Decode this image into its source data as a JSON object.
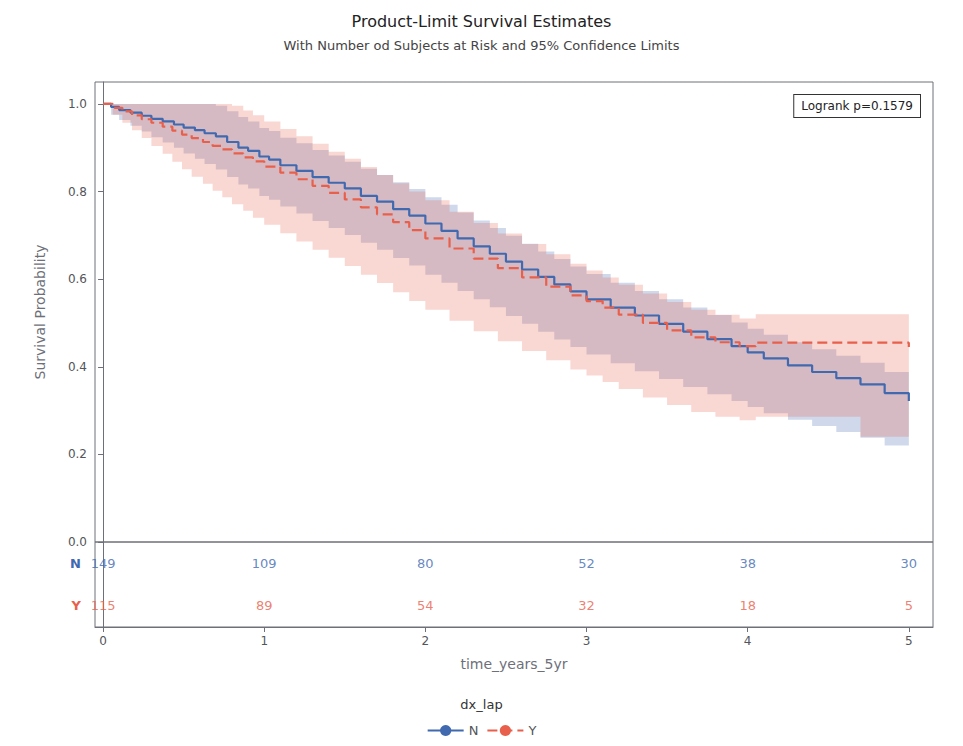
{
  "chart_data": {
    "type": "step",
    "title": "Product-Limit Survival Estimates",
    "subtitle": "With Number od Subjects at Risk and 95% Confidence Limits",
    "xlabel": "time_years_5yr",
    "ylabel": "Survival Probability",
    "annotation": "Logrank p=0.1579",
    "xlim": [
      -0.05,
      5.15
    ],
    "ylim": [
      0.0,
      1.05
    ],
    "xticks": [
      0,
      1,
      2,
      3,
      4,
      5
    ],
    "yticks": [
      {
        "value": 0.0,
        "label": "0.0"
      },
      0.2,
      0.4,
      0.6,
      0.8,
      {
        "value": 1.0,
        "label": "1.0"
      }
    ],
    "grid": false,
    "legend": "bottom",
    "legend_title": "dx_lap",
    "series": [
      {
        "name": "N",
        "color": "#4169B0",
        "line_style": "solid",
        "x": [
          0.0,
          0.05,
          0.1,
          0.17,
          0.24,
          0.3,
          0.37,
          0.44,
          0.5,
          0.57,
          0.63,
          0.7,
          0.77,
          0.84,
          0.9,
          0.97,
          1.03,
          1.1,
          1.2,
          1.3,
          1.4,
          1.5,
          1.6,
          1.7,
          1.8,
          1.9,
          2.0,
          2.1,
          2.2,
          2.3,
          2.4,
          2.5,
          2.6,
          2.7,
          2.8,
          2.9,
          3.0,
          3.15,
          3.3,
          3.45,
          3.6,
          3.75,
          3.9,
          4.0,
          4.1,
          4.25,
          4.4,
          4.55,
          4.7,
          4.85,
          5.0
        ],
        "values": [
          1.0,
          0.993,
          0.986,
          0.98,
          0.973,
          0.966,
          0.96,
          0.953,
          0.946,
          0.94,
          0.933,
          0.926,
          0.913,
          0.9,
          0.893,
          0.88,
          0.873,
          0.86,
          0.847,
          0.833,
          0.82,
          0.807,
          0.79,
          0.777,
          0.76,
          0.745,
          0.727,
          0.71,
          0.693,
          0.675,
          0.658,
          0.64,
          0.622,
          0.605,
          0.588,
          0.572,
          0.554,
          0.535,
          0.517,
          0.498,
          0.48,
          0.463,
          0.447,
          0.433,
          0.419,
          0.403,
          0.388,
          0.374,
          0.36,
          0.34,
          0.322
        ],
        "lower": [
          1.0,
          0.975,
          0.963,
          0.95,
          0.937,
          0.924,
          0.912,
          0.9,
          0.887,
          0.875,
          0.863,
          0.85,
          0.833,
          0.816,
          0.807,
          0.79,
          0.781,
          0.766,
          0.75,
          0.733,
          0.717,
          0.701,
          0.683,
          0.667,
          0.648,
          0.631,
          0.61,
          0.592,
          0.573,
          0.554,
          0.536,
          0.516,
          0.498,
          0.48,
          0.462,
          0.445,
          0.428,
          0.408,
          0.39,
          0.372,
          0.354,
          0.337,
          0.322,
          0.308,
          0.294,
          0.279,
          0.265,
          0.251,
          0.238,
          0.22,
          0.218
        ],
        "upper": [
          1.0,
          1.0,
          1.0,
          1.0,
          1.0,
          1.0,
          1.0,
          1.0,
          1.0,
          1.0,
          1.0,
          0.996,
          0.983,
          0.97,
          0.96,
          0.945,
          0.938,
          0.923,
          0.91,
          0.895,
          0.882,
          0.868,
          0.852,
          0.838,
          0.821,
          0.806,
          0.787,
          0.77,
          0.752,
          0.734,
          0.717,
          0.699,
          0.681,
          0.663,
          0.646,
          0.629,
          0.612,
          0.592,
          0.573,
          0.554,
          0.535,
          0.518,
          0.501,
          0.487,
          0.473,
          0.456,
          0.44,
          0.425,
          0.409,
          0.388,
          0.388
        ]
      },
      {
        "name": "Y",
        "color": "#E8604C",
        "line_style": "dashed",
        "x": [
          0.0,
          0.06,
          0.12,
          0.18,
          0.24,
          0.3,
          0.37,
          0.43,
          0.49,
          0.55,
          0.62,
          0.68,
          0.74,
          0.8,
          0.87,
          0.93,
          1.0,
          1.1,
          1.2,
          1.3,
          1.4,
          1.5,
          1.6,
          1.7,
          1.8,
          1.9,
          2.0,
          2.15,
          2.3,
          2.45,
          2.6,
          2.75,
          2.9,
          3.0,
          3.1,
          3.2,
          3.35,
          3.5,
          3.65,
          3.8,
          3.95,
          4.05,
          4.2,
          4.45,
          4.7,
          4.9,
          5.0
        ],
        "values": [
          1.0,
          0.991,
          0.983,
          0.974,
          0.965,
          0.957,
          0.948,
          0.939,
          0.93,
          0.922,
          0.913,
          0.904,
          0.896,
          0.887,
          0.878,
          0.869,
          0.857,
          0.843,
          0.828,
          0.813,
          0.797,
          0.782,
          0.764,
          0.748,
          0.73,
          0.712,
          0.693,
          0.67,
          0.647,
          0.625,
          0.604,
          0.583,
          0.563,
          0.55,
          0.535,
          0.519,
          0.5,
          0.483,
          0.467,
          0.456,
          0.447,
          0.455,
          0.455,
          0.455,
          0.455,
          0.455,
          0.445
        ],
        "lower": [
          1.0,
          0.975,
          0.957,
          0.94,
          0.922,
          0.904,
          0.886,
          0.868,
          0.851,
          0.834,
          0.818,
          0.802,
          0.787,
          0.771,
          0.756,
          0.74,
          0.724,
          0.705,
          0.686,
          0.667,
          0.649,
          0.63,
          0.61,
          0.591,
          0.57,
          0.55,
          0.53,
          0.505,
          0.481,
          0.458,
          0.436,
          0.415,
          0.394,
          0.38,
          0.365,
          0.349,
          0.33,
          0.313,
          0.297,
          0.286,
          0.278,
          0.286,
          0.286,
          0.286,
          0.24,
          0.24,
          0.235
        ],
        "upper": [
          1.0,
          1.0,
          1.0,
          1.0,
          1.0,
          1.0,
          1.0,
          1.0,
          1.0,
          1.0,
          1.0,
          1.0,
          1.0,
          0.996,
          0.985,
          0.974,
          0.96,
          0.943,
          0.926,
          0.909,
          0.891,
          0.875,
          0.856,
          0.838,
          0.819,
          0.8,
          0.78,
          0.754,
          0.728,
          0.704,
          0.68,
          0.657,
          0.635,
          0.62,
          0.604,
          0.587,
          0.567,
          0.548,
          0.53,
          0.519,
          0.51,
          0.52,
          0.52,
          0.52,
          0.52,
          0.52,
          0.52
        ]
      }
    ],
    "risk_table": {
      "x": [
        0,
        1,
        2,
        3,
        4,
        5
      ],
      "series": [
        {
          "name": "N",
          "values": [
            149,
            109,
            80,
            52,
            38,
            30
          ]
        },
        {
          "name": "Y",
          "values": [
            115,
            89,
            54,
            32,
            18,
            5
          ]
        }
      ]
    }
  }
}
